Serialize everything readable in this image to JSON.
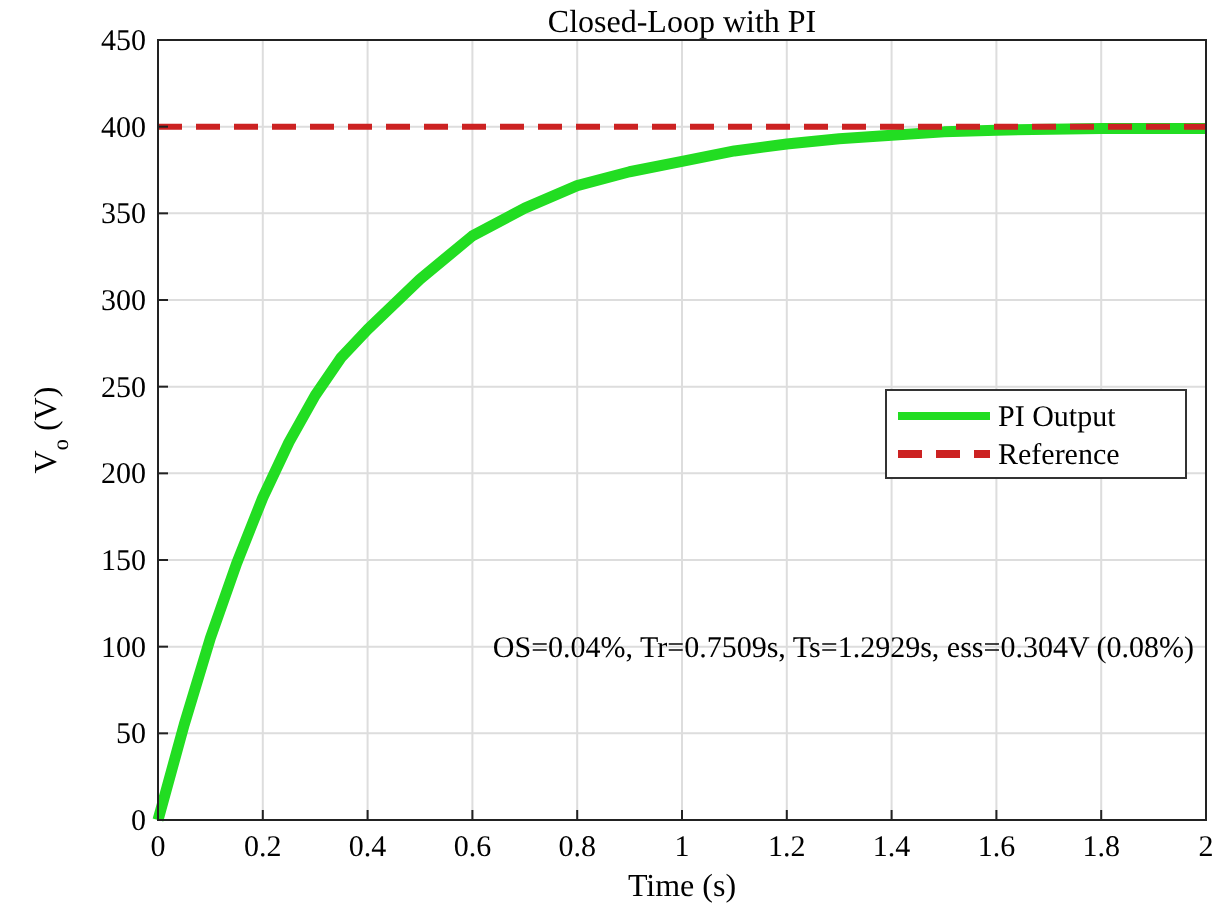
{
  "chart_data": {
    "type": "line",
    "title": "Closed-Loop with PI",
    "xlabel": "Time (s)",
    "ylabel": "V$_{o}$ (V)",
    "xlim": [
      0,
      2
    ],
    "xticks": [
      0,
      0.2,
      0.4,
      0.6,
      0.8,
      1,
      1.2,
      1.4,
      1.6,
      1.8,
      2
    ],
    "ylim": [
      0,
      450
    ],
    "yticks": [
      0,
      50,
      100,
      150,
      200,
      250,
      300,
      350,
      400,
      450
    ],
    "grid": true,
    "legend": "right",
    "annotations": [
      "OS=0.04%, Tr=0.7509s, Ts=1.2929s, ess=0.304V (0.08%)"
    ],
    "series": [
      {
        "name": "PI Output",
        "color": "#22dd22",
        "line_style": "solid",
        "x": [
          0,
          0.05,
          0.1,
          0.15,
          0.2,
          0.25,
          0.3,
          0.35,
          0.4,
          0.5,
          0.6,
          0.7,
          0.8,
          0.9,
          1,
          1.1,
          1.2,
          1.3,
          1.4,
          1.5,
          1.6,
          1.8,
          2
        ],
        "values": [
          0,
          55,
          105,
          148,
          186,
          218,
          245,
          267,
          283,
          312,
          337,
          353,
          366,
          374,
          380,
          386,
          390,
          393,
          395,
          397,
          398,
          399,
          399
        ]
      },
      {
        "name": "Reference",
        "color": "#cc2222",
        "line_style": "dashed",
        "x": [
          0,
          2
        ],
        "values": [
          400,
          400
        ]
      }
    ]
  }
}
